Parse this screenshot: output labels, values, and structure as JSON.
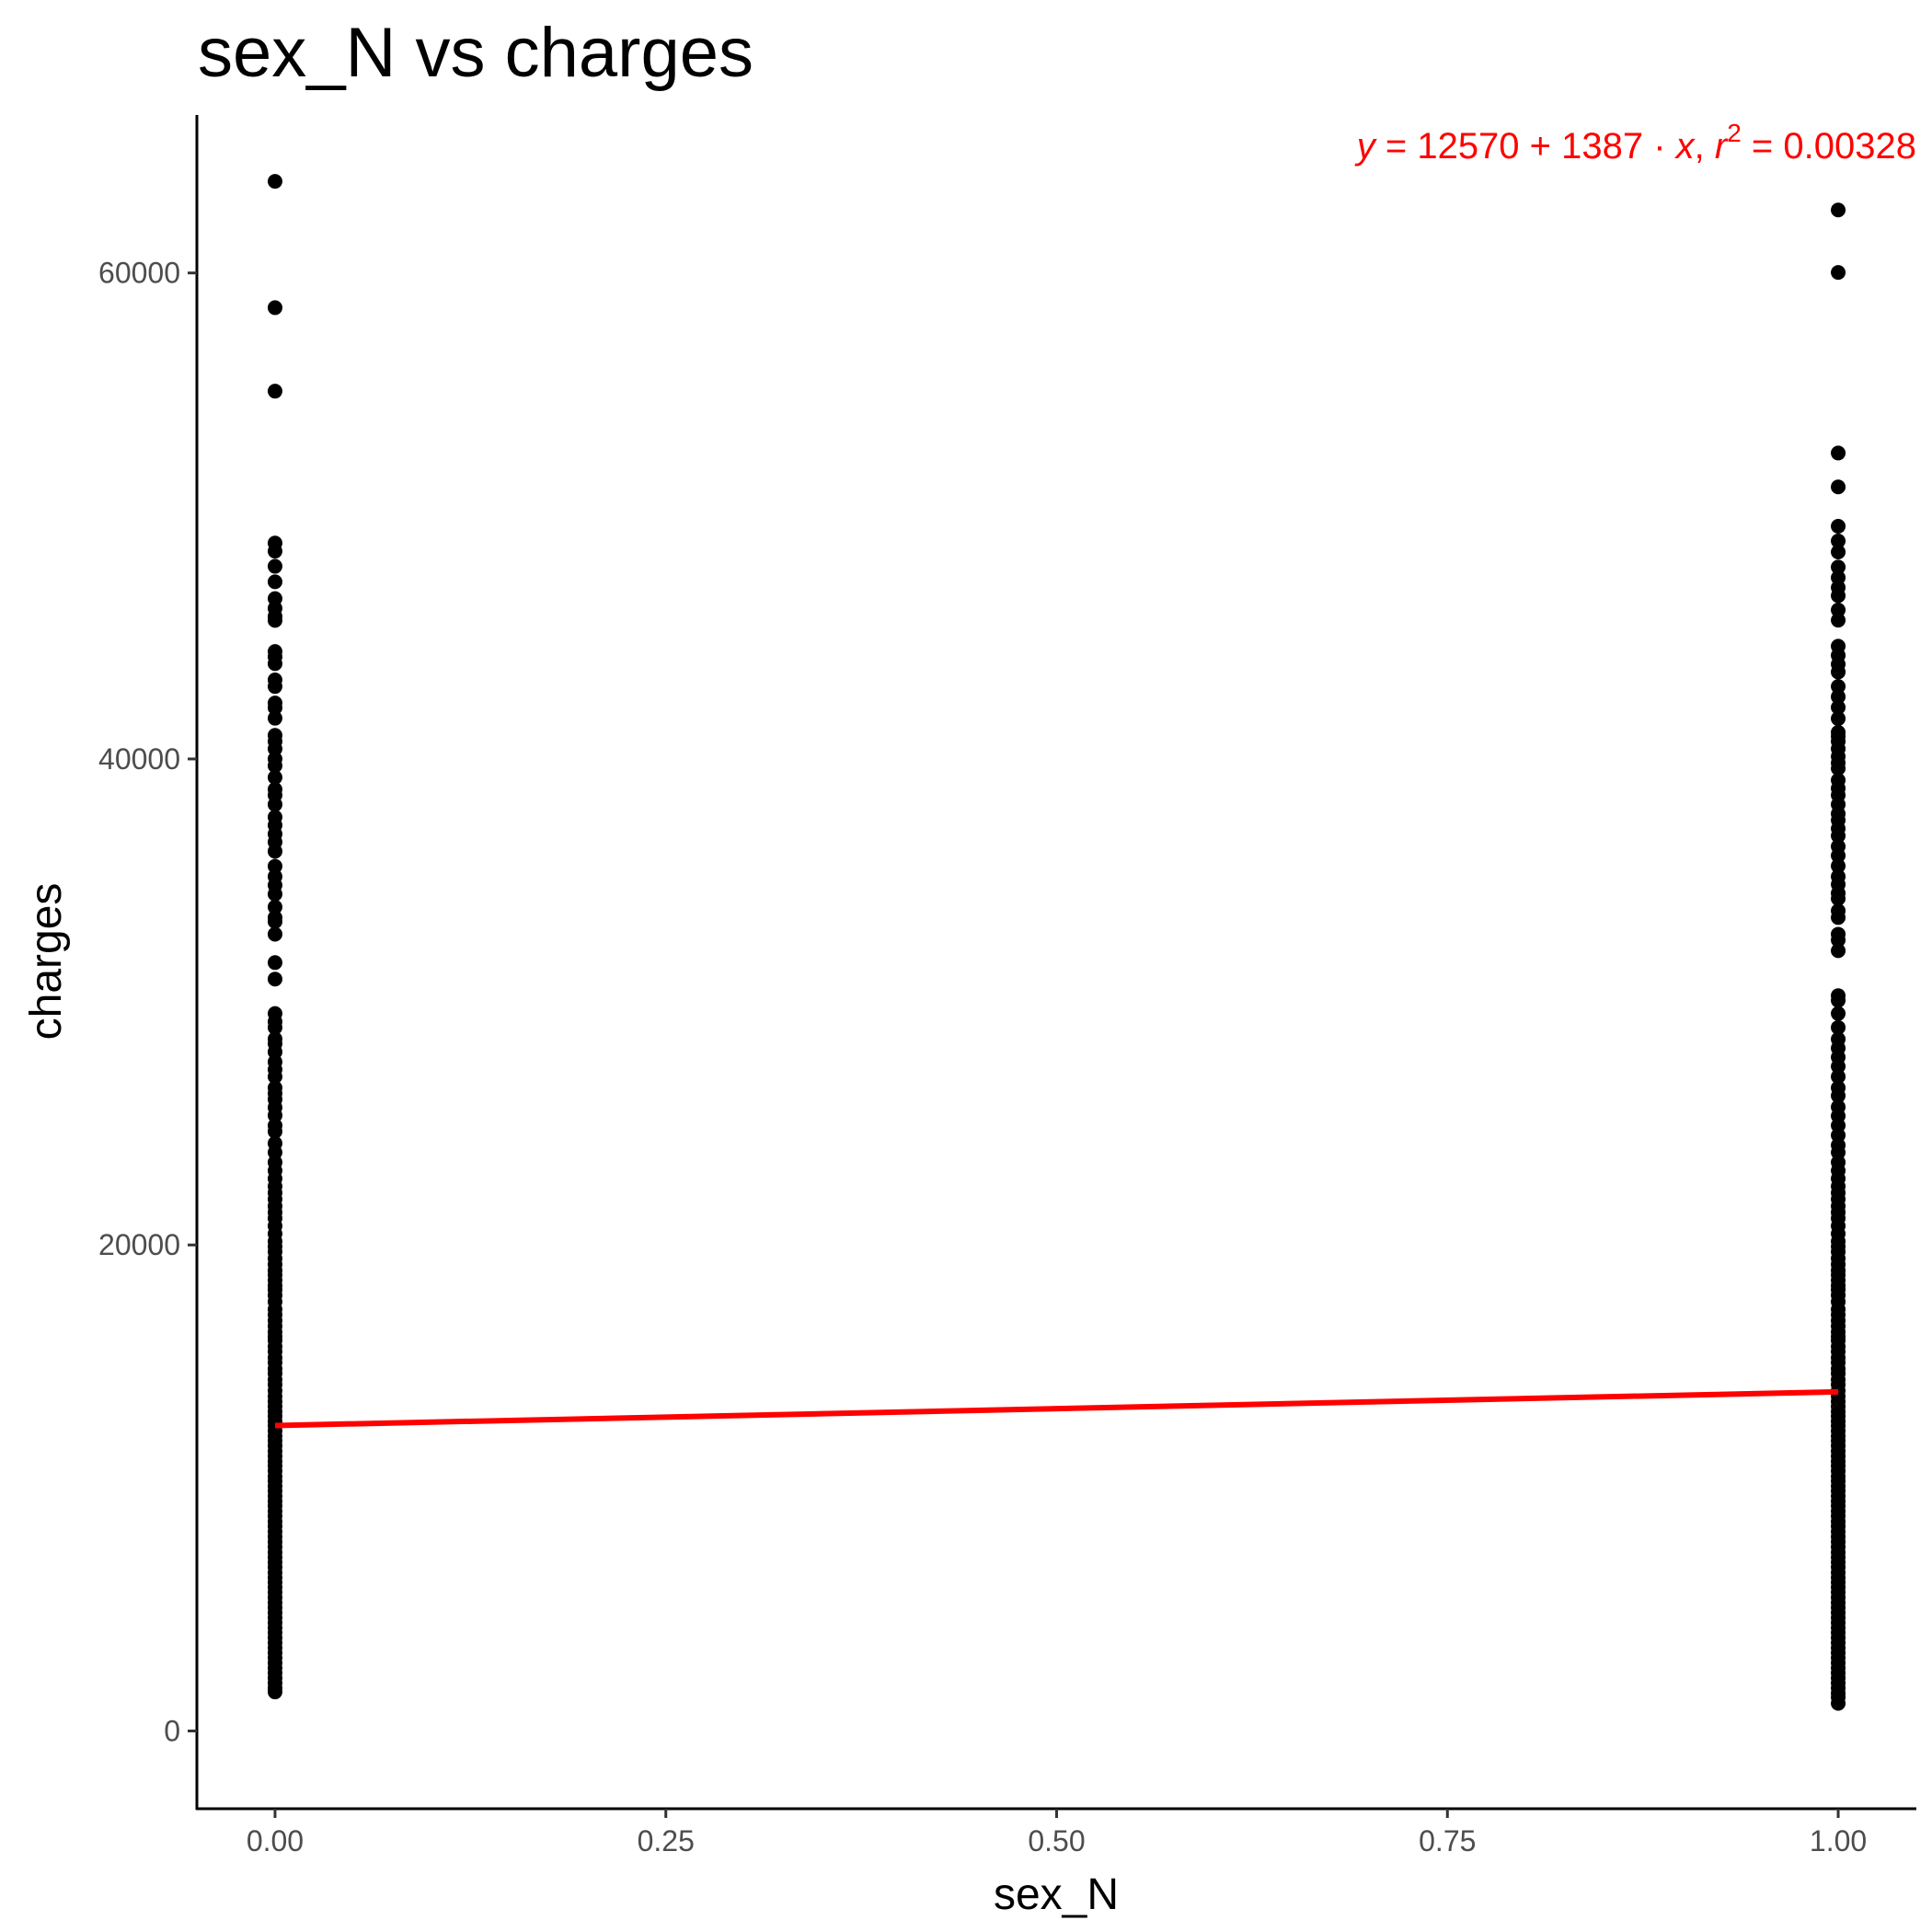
{
  "chart_data": {
    "type": "scatter",
    "title": "sex_N vs charges",
    "xlabel": "sex_N",
    "ylabel": "charges",
    "xlim": [
      -0.05,
      1.05
    ],
    "ylim": [
      -3200,
      66500
    ],
    "x_ticks": [
      0.0,
      0.25,
      0.5,
      0.75,
      1.0
    ],
    "x_tick_labels": [
      "0.00",
      "0.25",
      "0.50",
      "0.75",
      "1.00"
    ],
    "y_ticks": [
      0,
      20000,
      40000,
      60000
    ],
    "y_tick_labels": [
      "0",
      "20000",
      "40000",
      "60000"
    ],
    "grid": false,
    "legend": "none",
    "point_color": "#000000",
    "line_color": "#ff0000",
    "regression": {
      "intercept": 12570,
      "slope": 1387,
      "r2": 0.00328
    },
    "equation": {
      "y": "y",
      "eq1": " = 12570 + 1387 · ",
      "x": "x",
      "comma": ",  ",
      "r": "r",
      "sup": "2",
      "eq2": " = 0.00328"
    },
    "series": [
      {
        "x": 0,
        "charges": [
          63770,
          58571,
          55135,
          48885,
          48549,
          47928,
          47291,
          46599,
          46200,
          45863,
          45702,
          44423,
          44202,
          43921,
          43254,
          42983,
          42303,
          42111,
          41676,
          40974,
          40720,
          40419,
          40003,
          39722,
          39241,
          38746,
          38511,
          38126,
          37607,
          37270,
          36910,
          36580,
          36197,
          35585,
          35160,
          34806,
          34439,
          33907,
          33471,
          33307,
          32787,
          31620,
          30942,
          29523,
          29186,
          28950,
          28476,
          28287,
          27941,
          27533,
          27218,
          26926,
          26467,
          26236,
          25992,
          25656,
          25333,
          24915,
          24671,
          24180,
          23807,
          23401,
          23065,
          22731,
          22412,
          22144,
          21880,
          21595,
          21344,
          21098,
          20781,
          20462,
          20149,
          19933,
          19719,
          19444,
          19199,
          18955,
          18765,
          18545,
          18328,
          18157,
          17929,
          17663,
          17352,
          17128,
          16884,
          16657,
          16420,
          16232,
          16069,
          15820,
          15612,
          15359,
          15161,
          14901,
          14711,
          14455,
          14254,
          14001,
          13770,
          13555,
          13352,
          13143,
          12950,
          12741,
          12557,
          12347,
          12130,
          11938,
          11738,
          11512,
          11305,
          11090,
          10906,
          10704,
          10478,
          10288,
          10073,
          9876,
          9667,
          9456,
          9265,
          9043,
          8841,
          8620,
          8425,
          8203,
          7989,
          7786,
          7573,
          7351,
          7144,
          6940,
          6744,
          6520,
          6313,
          6114,
          5908,
          5707,
          5494,
          5279,
          5078,
          4870,
          4663,
          4456,
          4249,
          4042,
          3835,
          3628,
          3421,
          3214,
          3007,
          2800,
          2593,
          2386,
          2179,
          1972,
          1765,
          1607
        ]
      },
      {
        "x": 1,
        "charges": [
          62592,
          60021,
          52590,
          51195,
          49577,
          48970,
          48517,
          47896,
          47462,
          47055,
          46719,
          46130,
          45710,
          44641,
          44260,
          43896,
          43578,
          42983,
          42560,
          42124,
          41661,
          41097,
          40932,
          40720,
          40419,
          40103,
          39836,
          39611,
          39125,
          38792,
          38511,
          38126,
          37742,
          37484,
          37133,
          36837,
          36398,
          36021,
          35595,
          35160,
          34838,
          34472,
          34254,
          33750,
          33475,
          32787,
          32548,
          32108,
          30260,
          30063,
          29523,
          28950,
          28468,
          28101,
          27725,
          27346,
          26926,
          26467,
          26140,
          25678,
          25309,
          24915,
          24513,
          24106,
          23807,
          23401,
          23065,
          22731,
          22412,
          22144,
          21880,
          21595,
          21344,
          21098,
          20781,
          20462,
          20149,
          19933,
          19719,
          19444,
          19199,
          18955,
          18765,
          18545,
          18328,
          18157,
          17929,
          17663,
          17352,
          17128,
          16884,
          16657,
          16420,
          16232,
          16069,
          15820,
          15612,
          15359,
          15161,
          14901,
          14711,
          14455,
          14254,
          14001,
          13770,
          13555,
          13352,
          13143,
          12950,
          12741,
          12557,
          12347,
          12130,
          11938,
          11738,
          11512,
          11305,
          11090,
          10906,
          10704,
          10478,
          10288,
          10073,
          9876,
          9667,
          9456,
          9265,
          9043,
          8841,
          8620,
          8425,
          8203,
          7989,
          7786,
          7573,
          7351,
          7144,
          6940,
          6744,
          6520,
          6313,
          6114,
          5908,
          5707,
          5494,
          5279,
          5078,
          4870,
          4663,
          4456,
          4249,
          4042,
          3835,
          3628,
          3421,
          3214,
          3007,
          2800,
          2593,
          2386,
          2179,
          1972,
          1765,
          1558,
          1387,
          1136
        ]
      }
    ]
  }
}
